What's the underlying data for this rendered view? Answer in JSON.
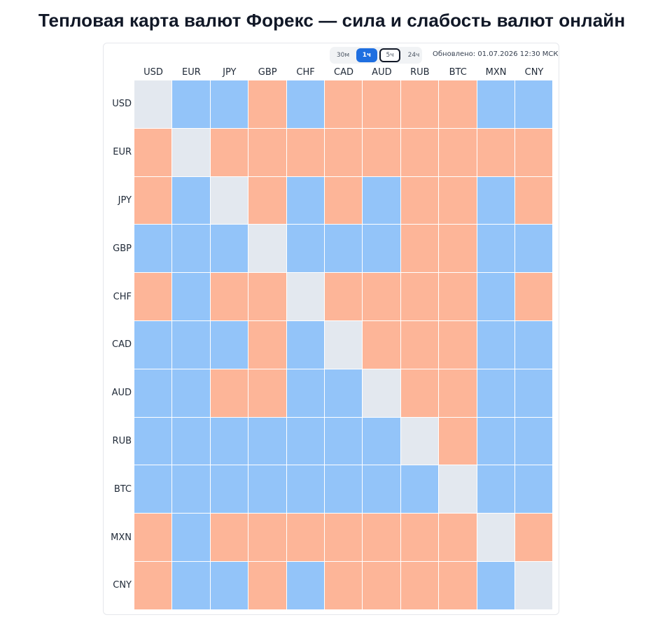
{
  "page": {
    "title": "Тепловая карта валют Форекс — сила и слабость валют онлайн"
  },
  "toolbar": {
    "timeframes": [
      "30м",
      "1ч",
      "5ч",
      "24ч"
    ],
    "active": "1ч",
    "focused": "5ч",
    "updated": "Обновлено: 01.07.2026 12:30 МСК"
  },
  "colors": {
    "strong": "#93c4f9",
    "weak": "#fdb598",
    "self": "#e3e8ef",
    "active_button": "#1f6fe0"
  },
  "chart_data": {
    "type": "heatmap",
    "title": "",
    "xlabel": "",
    "ylabel": "",
    "columns": [
      "USD",
      "EUR",
      "JPY",
      "GBP",
      "CHF",
      "CAD",
      "AUD",
      "RUB",
      "BTC",
      "MXN",
      "CNY"
    ],
    "rows": [
      "USD",
      "EUR",
      "JPY",
      "GBP",
      "CHF",
      "CAD",
      "AUD",
      "RUB",
      "BTC",
      "MXN",
      "CNY"
    ],
    "legend": {
      "0": "self",
      "1": "strong (blue)",
      "-1": "weak (orange)"
    },
    "values": [
      [
        0,
        1,
        1,
        -1,
        1,
        -1,
        -1,
        -1,
        -1,
        1,
        1
      ],
      [
        -1,
        0,
        -1,
        -1,
        -1,
        -1,
        -1,
        -1,
        -1,
        -1,
        -1
      ],
      [
        -1,
        1,
        0,
        -1,
        1,
        -1,
        1,
        -1,
        -1,
        1,
        -1
      ],
      [
        1,
        1,
        1,
        0,
        1,
        1,
        1,
        -1,
        -1,
        1,
        1
      ],
      [
        -1,
        1,
        -1,
        -1,
        0,
        -1,
        -1,
        -1,
        -1,
        1,
        -1
      ],
      [
        1,
        1,
        1,
        -1,
        1,
        0,
        -1,
        -1,
        -1,
        1,
        1
      ],
      [
        1,
        1,
        -1,
        -1,
        1,
        1,
        0,
        -1,
        -1,
        1,
        1
      ],
      [
        1,
        1,
        1,
        1,
        1,
        1,
        1,
        0,
        -1,
        1,
        1
      ],
      [
        1,
        1,
        1,
        1,
        1,
        1,
        1,
        1,
        0,
        1,
        1
      ],
      [
        -1,
        1,
        -1,
        -1,
        -1,
        -1,
        -1,
        -1,
        -1,
        0,
        -1
      ],
      [
        -1,
        1,
        1,
        -1,
        1,
        -1,
        -1,
        -1,
        -1,
        1,
        0
      ]
    ]
  }
}
